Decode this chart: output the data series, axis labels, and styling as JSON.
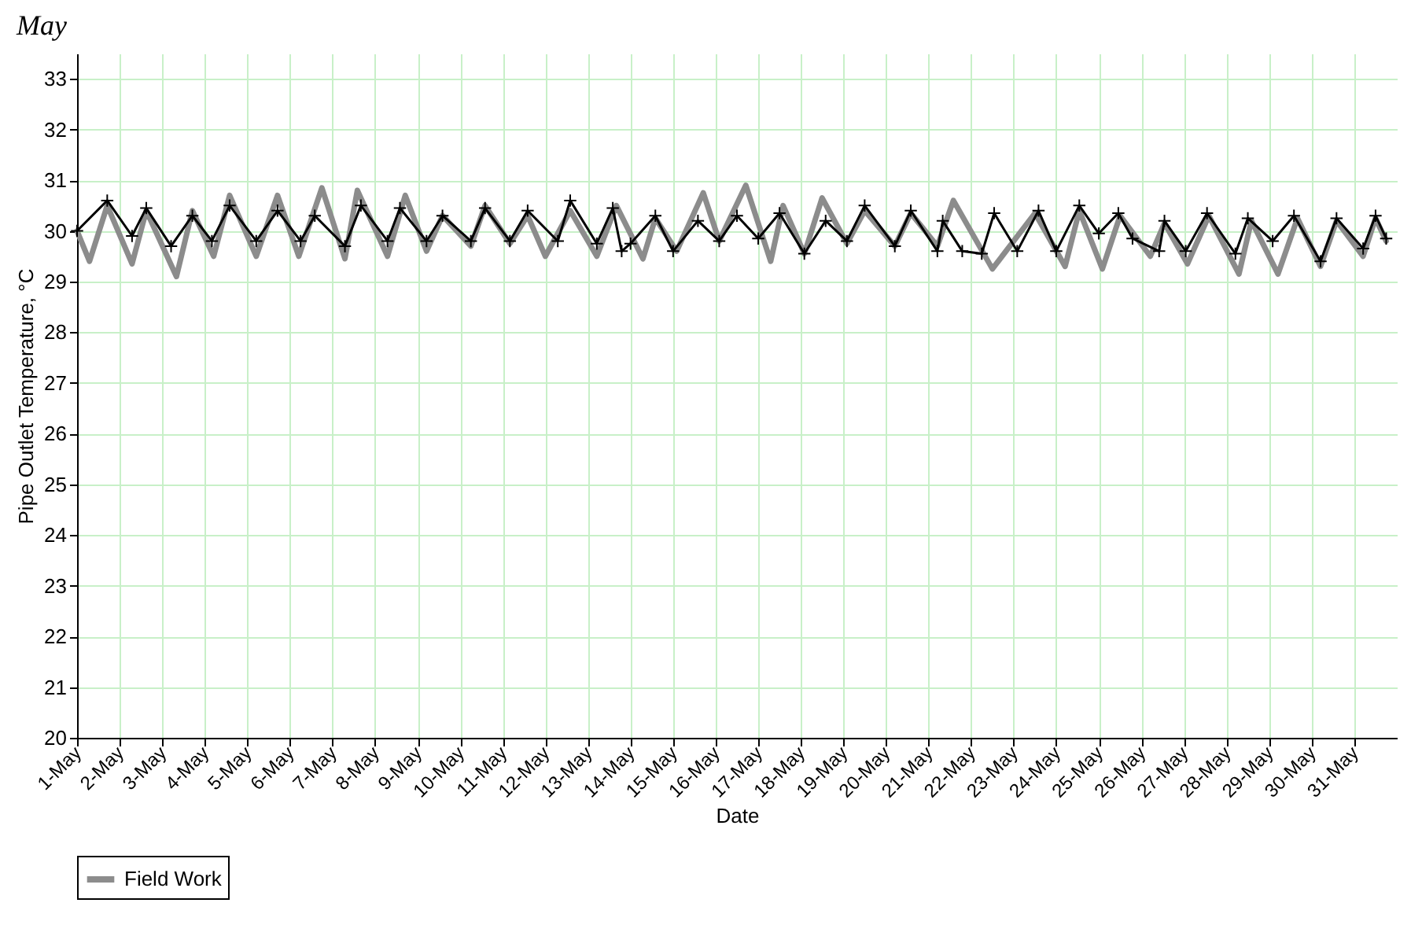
{
  "chart_data": {
    "type": "line",
    "title": "May",
    "xlabel": "Date",
    "ylabel": "Pipe Outlet Temperature, °C",
    "xlim": [
      "--05-01",
      "--06-01"
    ],
    "ylim": [
      20,
      33.5
    ],
    "xticks": [
      {
        "value": "--05-01",
        "label": "1-May"
      },
      {
        "value": "--05-02",
        "label": "2-May"
      },
      {
        "value": "--05-03",
        "label": "3-May"
      },
      {
        "value": "--05-04",
        "label": "4-May"
      },
      {
        "value": "--05-05",
        "label": "5-May"
      },
      {
        "value": "--05-06",
        "label": "6-May"
      },
      {
        "value": "--05-07",
        "label": "7-May"
      },
      {
        "value": "--05-08",
        "label": "8-May"
      },
      {
        "value": "--05-09",
        "label": "9-May"
      },
      {
        "value": "--05-10",
        "label": "10-May"
      },
      {
        "value": "--05-11",
        "label": "11-May"
      },
      {
        "value": "--05-12",
        "label": "12-May"
      },
      {
        "value": "--05-13",
        "label": "13-May"
      },
      {
        "value": "--05-14",
        "label": "14-May"
      },
      {
        "value": "--05-15",
        "label": "15-May"
      },
      {
        "value": "--05-16",
        "label": "16-May"
      },
      {
        "value": "--05-17",
        "label": "17-May"
      },
      {
        "value": "--05-18",
        "label": "18-May"
      },
      {
        "value": "--05-19",
        "label": "19-May"
      },
      {
        "value": "--05-20",
        "label": "20-May"
      },
      {
        "value": "--05-21",
        "label": "21-May"
      },
      {
        "value": "--05-22",
        "label": "22-May"
      },
      {
        "value": "--05-23",
        "label": "23-May"
      },
      {
        "value": "--05-24",
        "label": "24-May"
      },
      {
        "value": "--05-25",
        "label": "25-May"
      },
      {
        "value": "--05-26",
        "label": "26-May"
      },
      {
        "value": "--05-27",
        "label": "27-May"
      },
      {
        "value": "--05-28",
        "label": "28-May"
      },
      {
        "value": "--05-29",
        "label": "29-May"
      },
      {
        "value": "--05-30",
        "label": "30-May"
      },
      {
        "value": "--05-31",
        "label": "31-May"
      }
    ],
    "yticks": [
      20,
      21,
      22,
      23,
      24,
      25,
      26,
      27,
      28,
      29,
      30,
      31,
      32,
      33
    ],
    "grid": true,
    "legend": "bottom",
    "line_style": "solid",
    "series": [
      {
        "name": "Field Work",
        "color": "#8c8c8c",
        "marker": "none",
        "x": [
          "--05-01T00:00",
          "--05-01T07:00",
          "--05-01T17:00",
          "--05-02T07:00",
          "--05-02T15:00",
          "--05-03T08:00",
          "--05-03T17:00",
          "--05-04T05:00",
          "--05-04T14:00",
          "--05-05T05:00",
          "--05-05T17:00",
          "--05-06T05:00",
          "--05-06T18:00",
          "--05-07T07:00",
          "--05-07T14:00",
          "--05-08T07:00",
          "--05-08T17:00",
          "--05-09T05:00",
          "--05-09T14:00",
          "--05-10T06:00",
          "--05-10T14:00",
          "--05-11T04:00",
          "--05-11T14:00",
          "--05-12T00:00",
          "--05-12T14:00",
          "--05-13T05:00",
          "--05-13T16:00",
          "--05-14T07:00",
          "--05-14T14:00",
          "--05-15T02:00",
          "--05-15T17:00",
          "--05-16T02:00",
          "--05-16T17:00",
          "--05-17T07:00",
          "--05-17T14:00",
          "--05-18T02:00",
          "--05-18T12:00",
          "--05-19T02:00",
          "--05-19T12:00",
          "--05-20T05:00",
          "--05-20T14:00",
          "--05-21T05:00",
          "--05-21T14:00",
          "--05-22T12:00",
          "--05-23T12:00",
          "--05-24T05:00",
          "--05-24T13:00",
          "--05-25T02:00",
          "--05-25T12:00",
          "--05-26T05:00",
          "--05-26T13:00",
          "--05-27T02:00",
          "--05-27T14:00",
          "--05-28T07:00",
          "--05-28T14:00",
          "--05-29T05:00",
          "--05-29T16:00",
          "--05-30T05:00",
          "--05-30T14:00",
          "--05-31T05:00",
          "--05-31T12:00",
          "--05-31T18:00"
        ],
        "values": [
          30.0,
          29.4,
          30.5,
          29.35,
          30.4,
          29.1,
          30.4,
          29.5,
          30.7,
          29.5,
          30.7,
          29.5,
          30.85,
          29.45,
          30.8,
          29.5,
          30.7,
          29.6,
          30.3,
          29.7,
          30.5,
          29.75,
          30.3,
          29.5,
          30.4,
          29.5,
          30.5,
          29.45,
          30.25,
          29.6,
          30.75,
          29.8,
          30.9,
          29.4,
          30.5,
          29.55,
          30.65,
          29.75,
          30.4,
          29.7,
          30.35,
          29.7,
          30.6,
          29.25,
          30.35,
          29.3,
          30.4,
          29.25,
          30.3,
          29.5,
          30.15,
          29.35,
          30.3,
          29.15,
          30.2,
          29.15,
          30.25,
          29.3,
          30.2,
          29.5,
          30.25,
          29.8
        ]
      },
      {
        "color": "#000000",
        "marker": "cross",
        "x": [
          "--05-01T00:00",
          "--05-01T17:00",
          "--05-02T07:00",
          "--05-02T15:00",
          "--05-03T05:00",
          "--05-03T17:00",
          "--05-04T04:00",
          "--05-04T14:00",
          "--05-05T05:00",
          "--05-05T17:00",
          "--05-06T06:00",
          "--05-06T14:00",
          "--05-07T07:00",
          "--05-07T16:00",
          "--05-08T07:00",
          "--05-08T14:00",
          "--05-09T05:00",
          "--05-09T14:00",
          "--05-10T06:00",
          "--05-10T14:00",
          "--05-11T04:00",
          "--05-11T14:00",
          "--05-12T07:00",
          "--05-12T14:00",
          "--05-13T05:00",
          "--05-13T14:00",
          "--05-13T19:00",
          "--05-14T00:00",
          "--05-14T14:00",
          "--05-15T00:00",
          "--05-15T14:00",
          "--05-16T02:00",
          "--05-16T12:00",
          "--05-17T00:00",
          "--05-17T12:00",
          "--05-18T02:00",
          "--05-18T14:00",
          "--05-19T02:00",
          "--05-19T12:00",
          "--05-20T05:00",
          "--05-20T14:00",
          "--05-21T05:00",
          "--05-21T08:00",
          "--05-21T19:00",
          "--05-22T06:00",
          "--05-22T13:00",
          "--05-23T02:00",
          "--05-23T14:00",
          "--05-24T00:00",
          "--05-24T13:00",
          "--05-25T00:00",
          "--05-25T11:00",
          "--05-25T19:00",
          "--05-26T10:00",
          "--05-26T13:00",
          "--05-27T01:00",
          "--05-27T13:00",
          "--05-28T05:00",
          "--05-28T12:00",
          "--05-29T02:00",
          "--05-29T14:00",
          "--05-30T05:00",
          "--05-30T14:00",
          "--05-31T05:00",
          "--05-31T12:00",
          "--05-31T18:00"
        ],
        "values": [
          30.0,
          30.6,
          29.9,
          30.45,
          29.7,
          30.3,
          29.8,
          30.5,
          29.8,
          30.4,
          29.8,
          30.3,
          29.7,
          30.5,
          29.8,
          30.45,
          29.8,
          30.3,
          29.8,
          30.45,
          29.8,
          30.4,
          29.8,
          30.6,
          29.75,
          30.45,
          29.6,
          29.75,
          30.3,
          29.6,
          30.2,
          29.8,
          30.3,
          29.85,
          30.35,
          29.55,
          30.2,
          29.8,
          30.5,
          29.7,
          30.4,
          29.6,
          30.2,
          29.6,
          29.55,
          30.35,
          29.6,
          30.4,
          29.6,
          30.5,
          29.95,
          30.35,
          29.85,
          29.6,
          30.2,
          29.6,
          30.35,
          29.55,
          30.25,
          29.8,
          30.3,
          29.4,
          30.25,
          29.65,
          30.3,
          29.85
        ]
      }
    ]
  }
}
